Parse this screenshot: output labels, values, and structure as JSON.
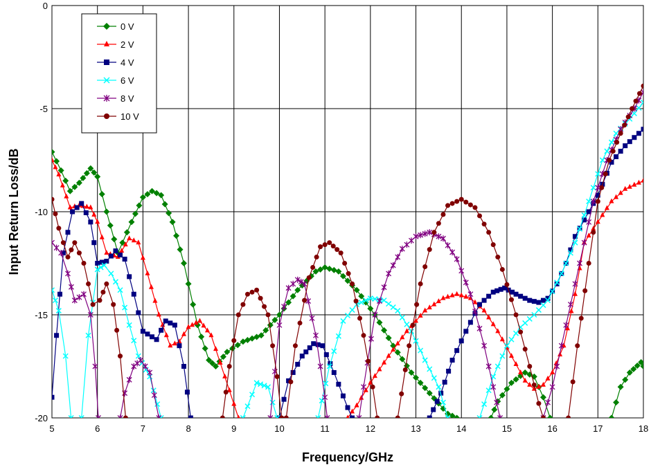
{
  "chart_data": {
    "type": "line",
    "title": "",
    "xlabel": "Frequency/GHz",
    "ylabel": "Input Return Loss/dB",
    "xlim": [
      5,
      18
    ],
    "ylim": [
      -20,
      0
    ],
    "x_ticks": [
      "5",
      "6",
      "7",
      "8",
      "9",
      "10",
      "11",
      "12",
      "13",
      "14",
      "15",
      "16",
      "17",
      "18"
    ],
    "y_ticks": [
      "0",
      "-5",
      "-10",
      "-15",
      "-20"
    ],
    "grid": true,
    "legend_position": "top-left",
    "series": [
      {
        "name": "0 V",
        "color": "#008000",
        "marker": "diamond",
        "points": [
          [
            5.0,
            -7.1
          ],
          [
            5.2,
            -8.0
          ],
          [
            5.4,
            -9.0
          ],
          [
            5.6,
            -8.6
          ],
          [
            5.85,
            -7.9
          ],
          [
            6.0,
            -8.3
          ],
          [
            6.2,
            -10.0
          ],
          [
            6.45,
            -12.0
          ],
          [
            6.75,
            -10.5
          ],
          [
            7.0,
            -9.3
          ],
          [
            7.2,
            -9.0
          ],
          [
            7.4,
            -9.2
          ],
          [
            7.65,
            -10.5
          ],
          [
            7.9,
            -12.5
          ],
          [
            8.2,
            -15.5
          ],
          [
            8.45,
            -17.2
          ],
          [
            8.6,
            -17.5
          ],
          [
            8.85,
            -16.8
          ],
          [
            9.2,
            -16.3
          ],
          [
            9.6,
            -16.0
          ],
          [
            10.0,
            -15.0
          ],
          [
            10.4,
            -13.8
          ],
          [
            10.8,
            -12.9
          ],
          [
            11.0,
            -12.7
          ],
          [
            11.3,
            -12.9
          ],
          [
            11.7,
            -13.8
          ],
          [
            12.1,
            -15.0
          ],
          [
            12.5,
            -16.5
          ],
          [
            12.9,
            -17.8
          ],
          [
            13.3,
            -18.8
          ],
          [
            13.7,
            -19.8
          ],
          [
            13.9,
            -20.0
          ]
        ]
      },
      {
        "name": "0 V",
        "color": "#008000",
        "marker": "diamond",
        "legend": false,
        "points": [
          [
            14.65,
            -20.0
          ],
          [
            14.8,
            -19.2
          ],
          [
            15.1,
            -18.3
          ],
          [
            15.4,
            -17.8
          ],
          [
            15.6,
            -18.0
          ],
          [
            15.8,
            -19.0
          ],
          [
            15.95,
            -20.0
          ]
        ]
      },
      {
        "name": "0 V",
        "color": "#008000",
        "marker": "diamond",
        "legend": false,
        "points": [
          [
            17.3,
            -20.0
          ],
          [
            17.5,
            -18.5
          ],
          [
            17.7,
            -17.8
          ],
          [
            17.95,
            -17.3
          ],
          [
            18.0,
            -17.5
          ]
        ]
      },
      {
        "name": "2 V",
        "color": "#ff0000",
        "marker": "triangle",
        "points": [
          [
            5.0,
            -7.5
          ],
          [
            5.15,
            -8.2
          ],
          [
            5.4,
            -9.8
          ],
          [
            5.6,
            -9.7
          ],
          [
            5.85,
            -9.8
          ],
          [
            6.0,
            -10.5
          ],
          [
            6.2,
            -12.0
          ],
          [
            6.45,
            -12.2
          ],
          [
            6.7,
            -11.3
          ],
          [
            6.9,
            -11.5
          ],
          [
            7.1,
            -13.0
          ],
          [
            7.35,
            -15.0
          ],
          [
            7.6,
            -16.5
          ],
          [
            7.8,
            -16.3
          ],
          [
            8.0,
            -15.6
          ],
          [
            8.25,
            -15.3
          ],
          [
            8.5,
            -16.0
          ],
          [
            8.8,
            -18.0
          ],
          [
            9.1,
            -20.0
          ]
        ]
      },
      {
        "name": "2 V",
        "color": "#ff0000",
        "marker": "triangle",
        "legend": false,
        "points": [
          [
            11.5,
            -20.0
          ],
          [
            11.7,
            -19.4
          ],
          [
            12.0,
            -18.3
          ],
          [
            12.4,
            -17.0
          ],
          [
            12.8,
            -15.8
          ],
          [
            13.2,
            -14.8
          ],
          [
            13.6,
            -14.2
          ],
          [
            13.9,
            -14.0
          ],
          [
            14.2,
            -14.2
          ],
          [
            14.5,
            -14.8
          ],
          [
            14.8,
            -15.8
          ],
          [
            15.1,
            -17.0
          ],
          [
            15.4,
            -18.2
          ],
          [
            15.6,
            -18.6
          ],
          [
            15.8,
            -18.4
          ],
          [
            16.0,
            -17.8
          ],
          [
            16.25,
            -16.5
          ],
          [
            16.5,
            -14.0
          ],
          [
            16.7,
            -11.5
          ],
          [
            17.0,
            -10.5
          ],
          [
            17.3,
            -9.5
          ],
          [
            17.6,
            -8.9
          ],
          [
            18.0,
            -8.5
          ]
        ]
      },
      {
        "name": "4 V",
        "color": "#000080",
        "marker": "square",
        "points": [
          [
            5.0,
            -19.0
          ],
          [
            5.1,
            -16.0
          ],
          [
            5.25,
            -12.0
          ],
          [
            5.45,
            -10.0
          ],
          [
            5.65,
            -9.6
          ],
          [
            5.85,
            -10.5
          ],
          [
            6.0,
            -12.5
          ],
          [
            6.2,
            -12.4
          ],
          [
            6.4,
            -11.9
          ],
          [
            6.6,
            -12.3
          ],
          [
            6.8,
            -14.0
          ],
          [
            7.0,
            -15.8
          ],
          [
            7.3,
            -16.2
          ],
          [
            7.5,
            -15.3
          ],
          [
            7.7,
            -15.5
          ],
          [
            7.9,
            -17.5
          ],
          [
            8.05,
            -20.0
          ]
        ]
      },
      {
        "name": "4 V",
        "color": "#000080",
        "marker": "square",
        "legend": false,
        "points": [
          [
            10.0,
            -20.0
          ],
          [
            10.2,
            -18.2
          ],
          [
            10.5,
            -17.0
          ],
          [
            10.75,
            -16.4
          ],
          [
            10.95,
            -16.5
          ],
          [
            11.2,
            -17.8
          ],
          [
            11.5,
            -19.5
          ],
          [
            11.6,
            -20.0
          ]
        ]
      },
      {
        "name": "4 V",
        "color": "#000080",
        "marker": "square",
        "legend": false,
        "points": [
          [
            13.3,
            -20.0
          ],
          [
            13.55,
            -18.8
          ],
          [
            13.8,
            -17.2
          ],
          [
            14.1,
            -15.8
          ],
          [
            14.4,
            -14.5
          ],
          [
            14.7,
            -13.9
          ],
          [
            14.95,
            -13.7
          ],
          [
            15.2,
            -14.0
          ],
          [
            15.5,
            -14.3
          ],
          [
            15.7,
            -14.4
          ],
          [
            15.9,
            -14.2
          ],
          [
            16.1,
            -13.5
          ],
          [
            16.3,
            -12.5
          ],
          [
            16.5,
            -11.2
          ],
          [
            16.8,
            -10.0
          ],
          [
            17.0,
            -9.2
          ],
          [
            17.3,
            -7.6
          ],
          [
            17.6,
            -6.8
          ],
          [
            18.0,
            -6.0
          ]
        ]
      },
      {
        "name": "6 V",
        "color": "#00ffff",
        "marker": "x",
        "points": [
          [
            5.0,
            -13.8
          ],
          [
            5.15,
            -14.8
          ],
          [
            5.3,
            -17.0
          ],
          [
            5.42,
            -20.0
          ]
        ]
      },
      {
        "name": "6 V",
        "color": "#00ffff",
        "marker": "x",
        "legend": false,
        "points": [
          [
            5.65,
            -20.0
          ],
          [
            5.8,
            -16.0
          ],
          [
            6.0,
            -12.8
          ],
          [
            6.15,
            -12.6
          ],
          [
            6.3,
            -13.0
          ],
          [
            6.5,
            -13.8
          ],
          [
            6.7,
            -15.5
          ],
          [
            6.9,
            -17.0
          ],
          [
            7.15,
            -18.0
          ],
          [
            7.4,
            -20.0
          ]
        ]
      },
      {
        "name": "6 V",
        "color": "#00ffff",
        "marker": "x",
        "legend": false,
        "points": [
          [
            9.2,
            -20.0
          ],
          [
            9.5,
            -18.3
          ],
          [
            9.75,
            -18.5
          ],
          [
            9.95,
            -20.0
          ]
        ]
      },
      {
        "name": "6 V",
        "color": "#00ffff",
        "marker": "x",
        "legend": false,
        "points": [
          [
            10.85,
            -20.0
          ],
          [
            11.1,
            -17.5
          ],
          [
            11.4,
            -15.3
          ],
          [
            11.7,
            -14.5
          ],
          [
            12.0,
            -14.2
          ],
          [
            12.3,
            -14.3
          ],
          [
            12.6,
            -14.8
          ],
          [
            12.9,
            -15.8
          ],
          [
            13.2,
            -17.2
          ],
          [
            13.5,
            -18.5
          ],
          [
            13.7,
            -20.0
          ]
        ]
      },
      {
        "name": "6 V",
        "color": "#00ffff",
        "marker": "x",
        "legend": false,
        "points": [
          [
            14.4,
            -20.0
          ],
          [
            14.7,
            -18.0
          ],
          [
            15.0,
            -16.5
          ],
          [
            15.3,
            -15.6
          ],
          [
            15.6,
            -15.0
          ],
          [
            15.9,
            -14.3
          ],
          [
            16.2,
            -13.0
          ],
          [
            16.5,
            -11.5
          ],
          [
            16.8,
            -9.5
          ],
          [
            17.1,
            -7.5
          ],
          [
            17.4,
            -6.2
          ],
          [
            17.7,
            -5.5
          ],
          [
            18.0,
            -4.7
          ]
        ]
      },
      {
        "name": "8 V",
        "color": "#800080",
        "marker": "asterisk",
        "points": [
          [
            5.0,
            -11.5
          ],
          [
            5.2,
            -12.0
          ],
          [
            5.35,
            -13.0
          ],
          [
            5.5,
            -14.3
          ],
          [
            5.7,
            -14.0
          ],
          [
            5.85,
            -15.0
          ],
          [
            5.95,
            -17.5
          ],
          [
            6.02,
            -20.0
          ]
        ]
      },
      {
        "name": "8 V",
        "color": "#800080",
        "marker": "asterisk",
        "legend": false,
        "points": [
          [
            6.5,
            -20.0
          ],
          [
            6.6,
            -18.8
          ],
          [
            6.8,
            -17.5
          ],
          [
            6.95,
            -17.2
          ],
          [
            7.15,
            -17.8
          ],
          [
            7.35,
            -20.0
          ]
        ]
      },
      {
        "name": "8 V",
        "color": "#800080",
        "marker": "asterisk",
        "legend": false,
        "points": [
          [
            9.8,
            -20.0
          ],
          [
            10.0,
            -15.5
          ],
          [
            10.2,
            -13.7
          ],
          [
            10.4,
            -13.3
          ],
          [
            10.55,
            -13.5
          ],
          [
            10.8,
            -16.0
          ],
          [
            11.0,
            -19.0
          ],
          [
            11.05,
            -20.0
          ]
        ]
      },
      {
        "name": "8 V",
        "color": "#800080",
        "marker": "asterisk",
        "legend": false,
        "points": [
          [
            11.75,
            -20.0
          ],
          [
            11.85,
            -18.5
          ],
          [
            12.1,
            -15.0
          ],
          [
            12.4,
            -13.0
          ],
          [
            12.7,
            -11.8
          ],
          [
            13.0,
            -11.2
          ],
          [
            13.3,
            -11.0
          ],
          [
            13.6,
            -11.3
          ],
          [
            13.9,
            -12.3
          ],
          [
            14.2,
            -14.0
          ],
          [
            14.5,
            -16.5
          ],
          [
            14.7,
            -18.5
          ],
          [
            14.85,
            -20.0
          ]
        ]
      },
      {
        "name": "8 V",
        "color": "#800080",
        "marker": "asterisk",
        "legend": false,
        "points": [
          [
            15.8,
            -20.0
          ],
          [
            16.0,
            -18.5
          ],
          [
            16.3,
            -15.5
          ],
          [
            16.6,
            -12.5
          ],
          [
            16.9,
            -9.5
          ],
          [
            17.2,
            -7.5
          ],
          [
            17.5,
            -6.0
          ],
          [
            17.8,
            -5.0
          ],
          [
            18.0,
            -4.2
          ]
        ]
      },
      {
        "name": "10 V",
        "color": "#800000",
        "marker": "circle",
        "points": [
          [
            5.0,
            -9.4
          ],
          [
            5.15,
            -10.8
          ],
          [
            5.35,
            -12.2
          ],
          [
            5.5,
            -11.5
          ],
          [
            5.7,
            -12.5
          ],
          [
            5.9,
            -14.5
          ],
          [
            6.05,
            -14.3
          ],
          [
            6.2,
            -13.5
          ],
          [
            6.35,
            -14.5
          ],
          [
            6.5,
            -17.0
          ],
          [
            6.62,
            -20.0
          ]
        ]
      },
      {
        "name": "10 V",
        "color": "#800000",
        "marker": "circle",
        "legend": false,
        "points": [
          [
            8.75,
            -20.0
          ],
          [
            8.9,
            -17.5
          ],
          [
            9.1,
            -15.0
          ],
          [
            9.3,
            -14.0
          ],
          [
            9.5,
            -13.8
          ],
          [
            9.75,
            -15.0
          ],
          [
            9.95,
            -18.0
          ],
          [
            10.05,
            -20.0
          ]
        ]
      },
      {
        "name": "10 V",
        "color": "#800000",
        "marker": "circle",
        "legend": false,
        "points": [
          [
            10.15,
            -20.0
          ],
          [
            10.35,
            -16.5
          ],
          [
            10.65,
            -13.2
          ],
          [
            10.9,
            -11.7
          ],
          [
            11.1,
            -11.5
          ],
          [
            11.35,
            -12.0
          ],
          [
            11.6,
            -13.5
          ],
          [
            11.85,
            -16.0
          ],
          [
            12.05,
            -18.5
          ],
          [
            12.15,
            -20.0
          ]
        ]
      },
      {
        "name": "10 V",
        "color": "#800000",
        "marker": "circle",
        "legend": false,
        "points": [
          [
            12.6,
            -20.0
          ],
          [
            12.85,
            -16.5
          ],
          [
            13.1,
            -13.5
          ],
          [
            13.4,
            -11.0
          ],
          [
            13.7,
            -9.7
          ],
          [
            14.0,
            -9.4
          ],
          [
            14.3,
            -9.8
          ],
          [
            14.6,
            -11.0
          ],
          [
            14.9,
            -12.8
          ],
          [
            15.2,
            -15.0
          ],
          [
            15.5,
            -17.5
          ],
          [
            15.7,
            -19.3
          ],
          [
            15.8,
            -20.0
          ]
        ]
      },
      {
        "name": "10 V",
        "color": "#800000",
        "marker": "circle",
        "legend": false,
        "points": [
          [
            16.35,
            -20.0
          ],
          [
            16.55,
            -16.5
          ],
          [
            16.8,
            -12.5
          ],
          [
            17.0,
            -9.5
          ],
          [
            17.25,
            -7.5
          ],
          [
            17.5,
            -6.2
          ],
          [
            17.75,
            -5.0
          ],
          [
            18.0,
            -3.9
          ]
        ]
      }
    ]
  }
}
